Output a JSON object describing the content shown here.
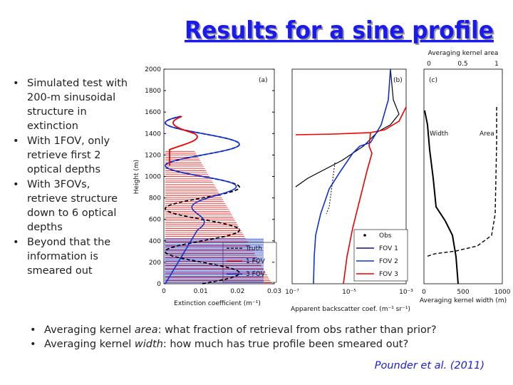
{
  "title": "Results for a sine profile",
  "bullets": [
    "Simulated test with 200-m sinusoidal structure in extinction",
    "With 1FOV, only retrieve first 2 optical depths",
    "With 3FOVs, retrieve structure down to 6 optical depths",
    "Beyond that the information is smeared out"
  ],
  "bottom_bullets": [
    [
      "Averaging kernel ",
      "area",
      ": what fraction of retrieval from obs rather than prior?"
    ],
    [
      "Averaging kernel ",
      "width",
      ": how much has true profile been smeared out?"
    ]
  ],
  "citation": "Pounder et al. (2011)",
  "figure": {
    "panel_a": {
      "label": "(a)",
      "ylabel": "Height (m)",
      "yticks": [
        0,
        200,
        400,
        600,
        800,
        1000,
        1200,
        1400,
        1600,
        1800,
        2000
      ],
      "xticks": [
        0,
        0.01,
        0.02,
        0.03
      ],
      "xlabel": "Extinction coefficient (m⁻¹)",
      "legend": [
        "Truth",
        "1 FOV",
        "3 FOV"
      ]
    },
    "panel_b": {
      "label": "(b)",
      "xticks": [
        "10⁻⁷",
        "10⁻⁵",
        "10⁻³"
      ],
      "xlabel": "Apparent backscatter coef. (m⁻¹ sr⁻¹)",
      "legend": [
        "Obs",
        "FOV 1",
        "FOV 2",
        "FOV 3"
      ]
    },
    "panel_c": {
      "label": "(c)",
      "top_title": "Averaging kernel area",
      "top_ticks": [
        0,
        0.5,
        1
      ],
      "bottom_ticks": [
        0,
        500,
        1000
      ],
      "xlabel": "Averaging kernel width (m)",
      "annotations": [
        "Width",
        "Area"
      ]
    }
  }
}
